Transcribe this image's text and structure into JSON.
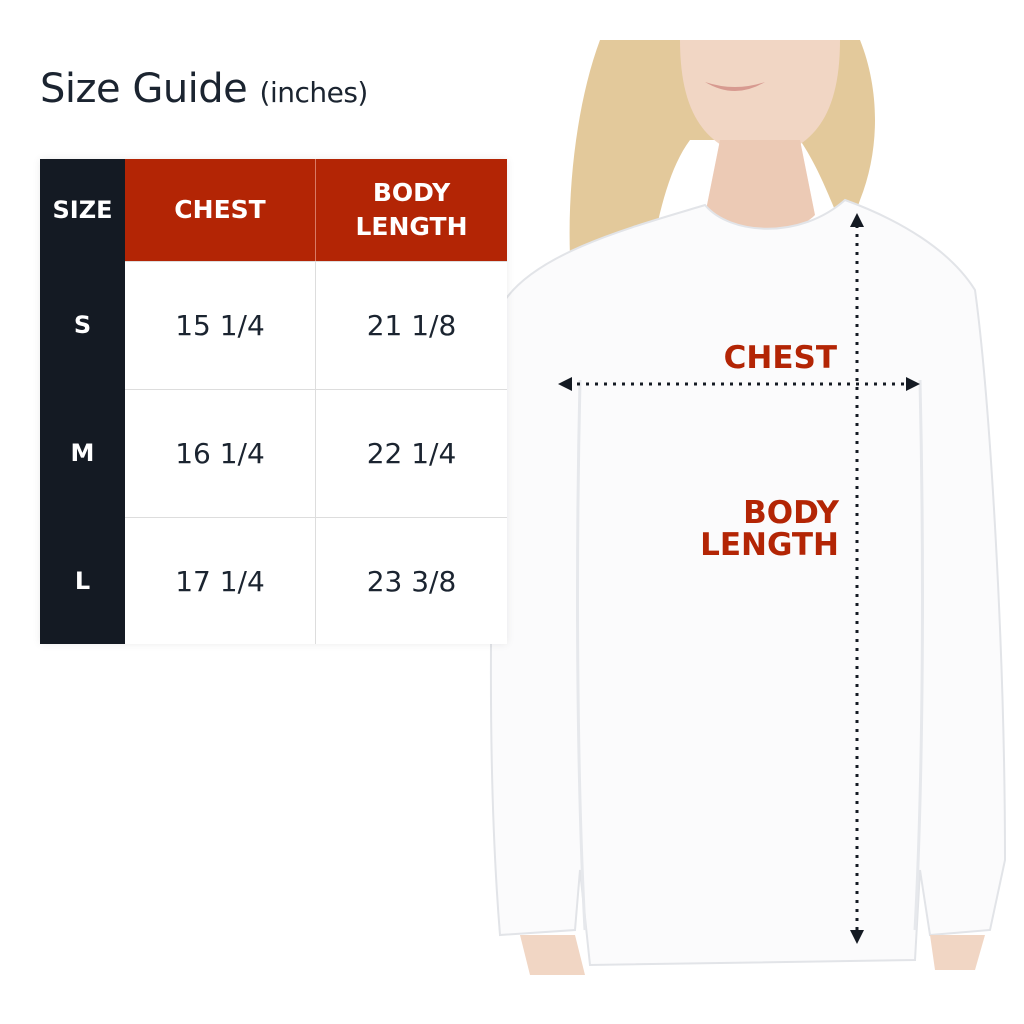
{
  "title": {
    "main": "Size Guide",
    "unit": "(inches)"
  },
  "table": {
    "headers": [
      "SIZE",
      "CHEST",
      "BODY\nLENGTH"
    ],
    "header_body_line1": "BODY",
    "header_body_line2": "LENGTH",
    "rows": [
      {
        "size": "S",
        "chest": "15 1/4",
        "body_length": "21 1/8"
      },
      {
        "size": "M",
        "chest": "16 1/4",
        "body_length": "22 1/4"
      },
      {
        "size": "L",
        "chest": "17 1/4",
        "body_length": "23 3/8"
      }
    ]
  },
  "figure": {
    "chest_label": "CHEST",
    "body_label_line1": "BODY",
    "body_label_line2": "LENGTH"
  },
  "colors": {
    "accent": "#b32505",
    "dark": "#141a23"
  }
}
